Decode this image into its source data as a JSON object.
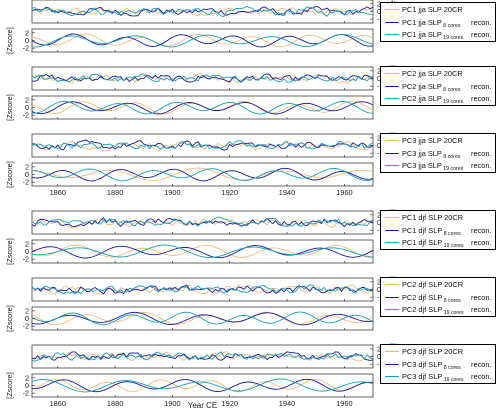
{
  "figure": {
    "xlabel": "Year CE",
    "ylabel": "[Zscore]",
    "colors": {
      "slp_20cr": "#f6b36a",
      "recon_8": "#1a1aa8",
      "recon_19": "#17a2b8"
    }
  },
  "legends": [
    {
      "rows": [
        {
          "main": "PC1 jja SLP 20CR",
          "sub": "",
          "recon": ""
        },
        {
          "main": "PC1 jja SLP",
          "sub": "8 cores",
          "recon": "recon."
        },
        {
          "main": "PC1 jja SLP",
          "sub": "19 cores",
          "recon": "recon."
        }
      ]
    },
    {
      "rows": [
        {
          "main": "PC2 jja SLP 20CR",
          "sub": "",
          "recon": ""
        },
        {
          "main": "PC2 jja SLP",
          "sub": "8 cores",
          "recon": "recon."
        },
        {
          "main": "PC2 jja SLP",
          "sub": "19 cores",
          "recon": "recon."
        }
      ]
    },
    {
      "rows": [
        {
          "main": "PC3 jja SLP 20CR",
          "sub": "",
          "recon": ""
        },
        {
          "main": "PC3 jja SLP",
          "sub": "8 cores",
          "recon": "recon."
        },
        {
          "main": "PC3 jja SLP",
          "sub": "19 cores",
          "recon": "recon."
        }
      ]
    },
    {
      "rows": [
        {
          "main": "PC1 djf SLP 20CR",
          "sub": "",
          "recon": ""
        },
        {
          "main": "PC1 djf SLP",
          "sub": "8 cores",
          "recon": "recon."
        },
        {
          "main": "PC1 djf SLP",
          "sub": "19 cores",
          "recon": "recon."
        }
      ]
    },
    {
      "rows": [
        {
          "main": "PC2 djf SLP 20CR",
          "sub": "",
          "recon": ""
        },
        {
          "main": "PC2 djf SLP",
          "sub": "8 cores",
          "recon": "recon."
        },
        {
          "main": "PC2 djf SLP",
          "sub": "19 cores",
          "recon": "recon."
        }
      ]
    },
    {
      "rows": [
        {
          "main": "PC3 djf SLP 20CR",
          "sub": "",
          "recon": ""
        },
        {
          "main": "PC3 djf SLP",
          "sub": "8 cores",
          "recon": "recon."
        },
        {
          "main": "PC3 djf SLP",
          "sub": "19 cores",
          "recon": "recon."
        }
      ]
    }
  ],
  "chart_data": {
    "type": "line",
    "xlim": [
      1851,
      1970
    ],
    "ylim": [
      -3,
      3
    ],
    "x_ticks": [
      1860,
      1880,
      1900,
      1920,
      1940,
      1960
    ],
    "y_ticks": [
      2,
      0,
      -2
    ],
    "xlabel": "Year CE",
    "ylabel": "[Zscore]",
    "panels": [
      {
        "group": "PC1 jja",
        "kind": "annual",
        "side": "right"
      },
      {
        "group": "PC1 jja",
        "kind": "smoothed",
        "side": "left"
      },
      {
        "group": "PC2 jja",
        "kind": "annual",
        "side": "right"
      },
      {
        "group": "PC2 jja",
        "kind": "smoothed",
        "side": "left"
      },
      {
        "group": "PC3 jja",
        "kind": "annual",
        "side": "right"
      },
      {
        "group": "PC3 jja",
        "kind": "smoothed",
        "side": "left"
      },
      {
        "group": "PC1 djf",
        "kind": "annual",
        "side": "right"
      },
      {
        "group": "PC1 djf",
        "kind": "smoothed",
        "side": "left"
      },
      {
        "group": "PC2 djf",
        "kind": "annual",
        "side": "right"
      },
      {
        "group": "PC2 djf",
        "kind": "smoothed",
        "side": "left"
      },
      {
        "group": "PC3 djf",
        "kind": "annual",
        "side": "right"
      },
      {
        "group": "PC3 djf",
        "kind": "smoothed",
        "side": "left"
      }
    ],
    "series_styles": [
      {
        "key": "slp_20cr",
        "color": "#f6b36a"
      },
      {
        "key": "recon_8",
        "color": "#1a1aa8"
      },
      {
        "key": "recon_19",
        "color": "#17a2b8"
      }
    ]
  }
}
